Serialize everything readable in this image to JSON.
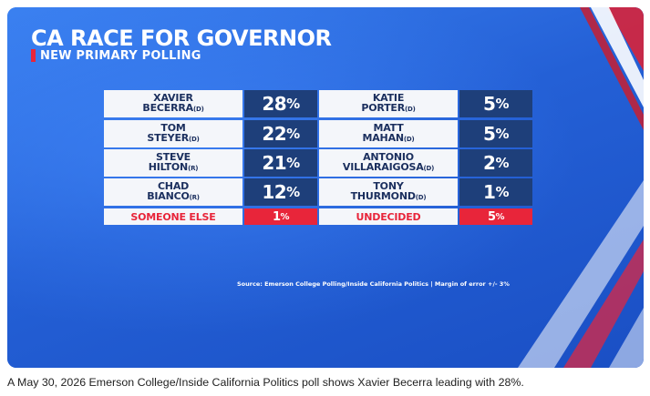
{
  "graphic": {
    "title": "CA RACE FOR GOVERNOR",
    "subtitle": "NEW PRIMARY POLLING",
    "source": "Source: Emerson College Polling/Inside California Politics | Margin of error +/- 3%",
    "colors": {
      "background": "#2b6ce0",
      "name_cell": "#f4f6fa",
      "value_cell": "#1e3f7a",
      "accent_red": "#e8253a"
    }
  },
  "chart_data": {
    "type": "table",
    "title": "CA RACE FOR GOVERNOR",
    "subtitle": "NEW PRIMARY POLLING",
    "unit": "%",
    "columns": [
      {
        "rows": [
          {
            "first": "XAVIER",
            "last": "BECERRA",
            "party": "(D)",
            "value": 28
          },
          {
            "first": "TOM",
            "last": "STEYER",
            "party": "(D)",
            "value": 22
          },
          {
            "first": "STEVE",
            "last": "HILTON",
            "party": "(R)",
            "value": 21
          },
          {
            "first": "CHAD",
            "last": "BIANCO",
            "party": "(R)",
            "value": 12
          }
        ],
        "extra": {
          "label": "SOMEONE ELSE",
          "value": 1
        }
      },
      {
        "rows": [
          {
            "first": "KATIE",
            "last": "PORTER",
            "party": "(D)",
            "value": 5
          },
          {
            "first": "MATT",
            "last": "MAHAN",
            "party": "(D)",
            "value": 5
          },
          {
            "first": "ANTONIO",
            "last": "VILLARAIGOSA",
            "party": "(D)",
            "value": 2
          },
          {
            "first": "TONY",
            "last": "THURMOND",
            "party": "(D)",
            "value": 1
          }
        ],
        "extra": {
          "label": "UNDECIDED",
          "value": 5
        }
      }
    ],
    "source": "Source: Emerson College Polling/Inside California Politics | Margin of error +/- 3%"
  },
  "caption": "A May 30, 2026 Emerson College/Inside California Politics poll shows Xavier Becerra leading with 28%."
}
